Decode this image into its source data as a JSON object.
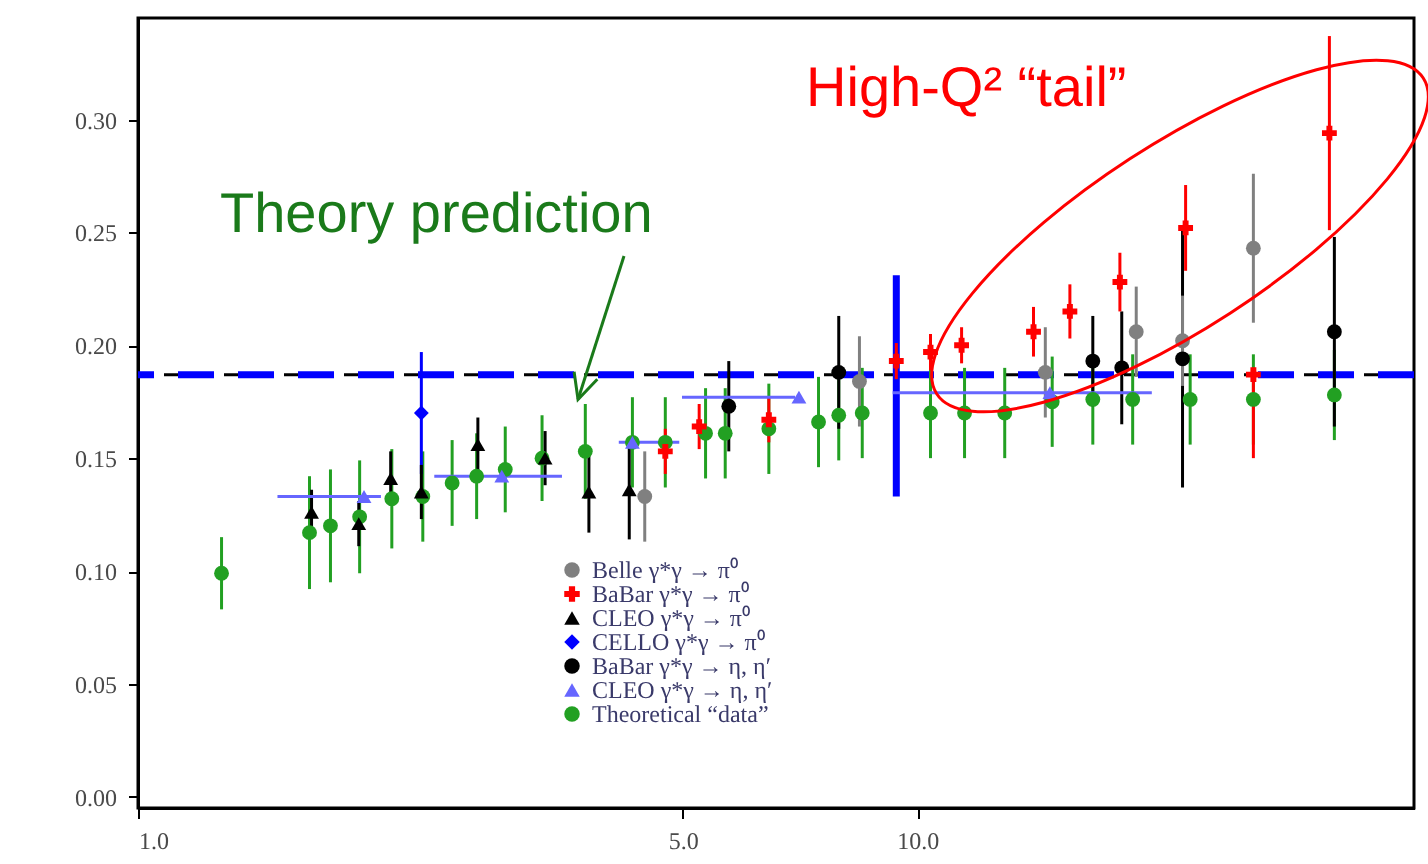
{
  "chart_data": {
    "type": "scatter",
    "xlim": [
      1,
      43.4
    ],
    "ylim": [
      -0.005,
      0.345
    ],
    "log": "x",
    "xticks": [
      {
        "value": 1,
        "label": "1.0"
      },
      {
        "value": 5,
        "label": "5.0"
      },
      {
        "value": 10,
        "label": "10.0"
      }
    ],
    "yticks": [
      {
        "value": 0,
        "label": "0.00"
      },
      {
        "value": 0.05,
        "label": "0.05"
      },
      {
        "value": 0.1,
        "label": "0.10"
      },
      {
        "value": 0.15,
        "label": "0.15"
      },
      {
        "value": 0.2,
        "label": "0.20"
      },
      {
        "value": 0.25,
        "label": "0.25"
      },
      {
        "value": 0.3,
        "label": "0.30"
      }
    ],
    "grid": false,
    "legend": "bottom",
    "annotations": [
      {
        "text": "Theory prediction",
        "x": 3.67,
        "y": 0.176
      },
      "High-Q² “tail”"
    ],
    "ref_lines": [
      {
        "axis": "y",
        "value": 0.187,
        "color": "#000000",
        "line_style": "dashed"
      },
      {
        "axis": "y",
        "value": 0.187,
        "color": "#0000ff",
        "line_style": "dashed"
      }
    ],
    "series": [
      {
        "name": "Belle γ*γ → π⁰",
        "color": "#808080",
        "marker": "circle",
        "x": [
          4.47,
          8.43,
          14.6,
          19.1,
          21.9,
          27.0
        ],
        "values": [
          0.133,
          0.184,
          0.188,
          0.206,
          0.202,
          0.243
        ],
        "errors": [
          0.02,
          0.02,
          0.02,
          0.02,
          0.02,
          0.033
        ]
      },
      {
        "name": "BaBar γ*γ → π⁰",
        "color": "#ff0000",
        "marker": "cross",
        "x": [
          4.75,
          5.25,
          6.45,
          9.4,
          10.4,
          11.4,
          14.1,
          15.7,
          18.2,
          22.1,
          27.0,
          33.8
        ],
        "values": [
          0.153,
          0.164,
          0.167,
          0.193,
          0.197,
          0.2,
          0.206,
          0.215,
          0.228,
          0.252,
          0.187,
          0.294
        ],
        "errors": [
          0.01,
          0.01,
          0.01,
          0.008,
          0.008,
          0.008,
          0.011,
          0.012,
          0.013,
          0.019,
          [
            0.15,
            0.19
          ],
          0.043
        ]
      },
      {
        "name": "CLEO γ*γ → π⁰",
        "color": "#000000",
        "marker": "triangle",
        "x": [
          1.67,
          1.92,
          2.11,
          2.31,
          2.73,
          3.33,
          3.79,
          4.27
        ],
        "values": [
          0.126,
          0.121,
          0.141,
          0.135,
          0.156,
          0.15,
          0.135,
          0.136
        ],
        "errors": [
          0.01,
          0.01,
          0.012,
          0.012,
          0.012,
          0.012,
          0.018,
          0.022
        ]
      },
      {
        "name": "CELLO γ*γ → π⁰",
        "color": "#0000ff",
        "marker": "diamond",
        "x": [
          2.31
        ],
        "values": [
          0.17
        ],
        "errors": [
          0.027
        ]
      },
      {
        "name": "BaBar γ*γ → η, η′",
        "color": "#000000",
        "marker": "circle",
        "x": [
          5.73,
          7.93,
          16.8,
          18.3,
          21.9,
          34.3
        ],
        "values": [
          0.173,
          0.188,
          0.193,
          0.19,
          0.194,
          0.206
        ],
        "errors": [
          0.02,
          0.025,
          0.02,
          0.025,
          0.057,
          0.042
        ]
      },
      {
        "name": "CLEO γ*γ → η, η′",
        "color": "#6666ff",
        "marker": "triangle",
        "x": [
          1.95,
          2.93,
          4.31,
          7.05,
          14.8
        ],
        "values": [
          0.133,
          0.142,
          0.157,
          0.177,
          0.179
        ],
        "xerrors": [
          [
            1.51,
            2.05
          ],
          [
            2.4,
            3.5
          ],
          [
            4.14,
            4.95
          ],
          [
            4.99,
            6.97
          ],
          [
            9.3,
            20.0
          ]
        ]
      },
      {
        "name": "Theoretical “data”",
        "color": "#22a022",
        "marker": "circle",
        "x": [
          1.28,
          1.66,
          1.766,
          1.925,
          2.117,
          2.32,
          2.53,
          2.72,
          2.96,
          3.3,
          3.75,
          4.31,
          4.75,
          5.35,
          5.67,
          6.45,
          7.47,
          7.93,
          8.5,
          10.4,
          11.5,
          12.95,
          14.9,
          16.8,
          18.9,
          22.4,
          27.0,
          34.3
        ],
        "values": [
          0.099,
          0.117,
          0.12,
          0.124,
          0.132,
          0.133,
          0.139,
          0.142,
          0.145,
          0.15,
          0.153,
          0.157,
          0.157,
          0.161,
          0.161,
          0.163,
          0.166,
          0.169,
          0.17,
          0.17,
          0.17,
          0.17,
          0.175,
          0.176,
          0.176,
          0.176,
          0.176,
          0.178
        ],
        "errors": [
          0.016,
          0.025,
          0.025,
          0.025,
          0.022,
          0.02,
          0.019,
          0.019,
          0.019,
          0.019,
          0.021,
          0.02,
          0.02,
          0.02,
          0.02,
          0.02,
          0.02,
          0.02,
          0.02,
          0.02,
          0.02,
          0.02,
          0.02,
          0.02,
          0.02,
          0.02,
          0.02,
          0.02
        ]
      },
      {
        "type": "line",
        "color": "#0000ff",
        "x": [
          9.4,
          9.4
        ],
        "values": [
          0.133,
          0.231
        ]
      }
    ]
  }
}
